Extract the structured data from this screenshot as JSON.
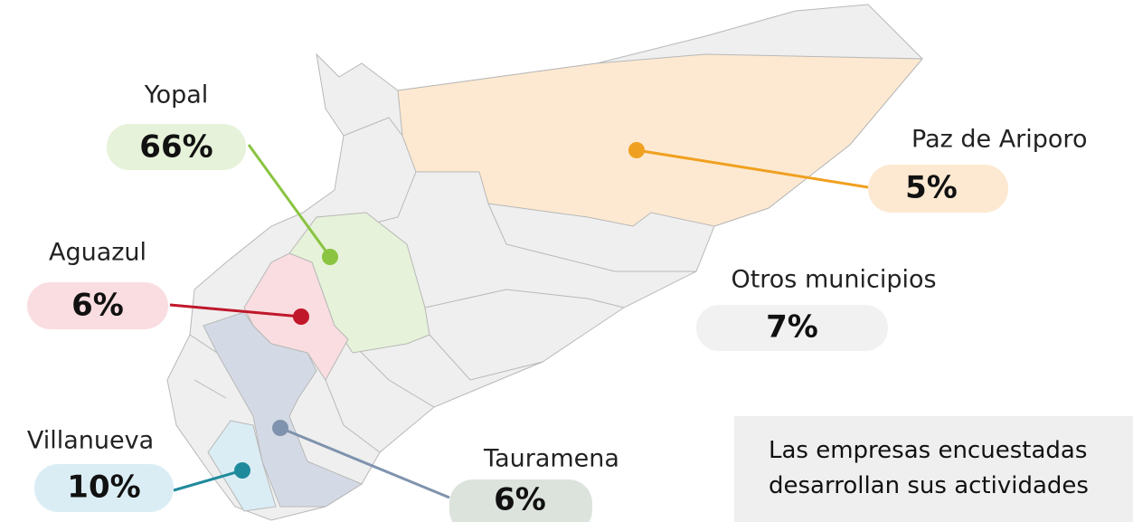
{
  "regions": [
    {
      "name": "Yopal",
      "percent": "66%"
    },
    {
      "name": "Aguazul",
      "percent": "6%"
    },
    {
      "name": "Paz de Ariporo",
      "percent": "5%"
    },
    {
      "name": "Otros municipios",
      "percent": "7%"
    },
    {
      "name": "Villanueva",
      "percent": "10%"
    },
    {
      "name": "Tauramena",
      "percent": "6%"
    }
  ],
  "note": {
    "lines": [
      "Las empresas encuestadas",
      "desarrollan sus actividades"
    ]
  }
}
